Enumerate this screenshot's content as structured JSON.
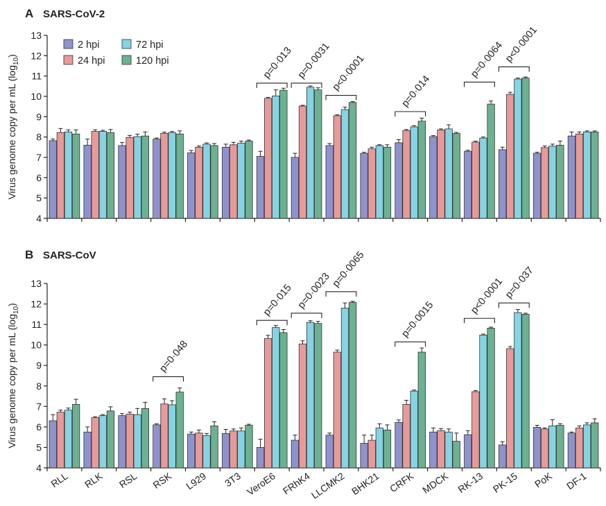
{
  "chart_data": [
    {
      "panel_letter": "A",
      "title": "SARS-CoV-2",
      "type": "bar",
      "ylabel_main": "Virus genome copy per mL (log",
      "ylabel_sub": "10",
      "ylabel_end": ")",
      "ylim": [
        4,
        13
      ],
      "yticks": [
        4,
        5,
        6,
        7,
        8,
        9,
        10,
        11,
        12,
        13
      ],
      "show_xticklabels": false,
      "legend": true,
      "categories": [
        "RLL",
        "RLK",
        "RSL",
        "RSK",
        "L929",
        "3T3",
        "VeroE6",
        "FRhK4",
        "LLCMK2",
        "BHK21",
        "CRFK",
        "MDCK",
        "RK-13",
        "PK-15",
        "PoK",
        "DF-1"
      ],
      "series": [
        {
          "name": "2 hpi",
          "color": "#8e93cd",
          "values": [
            7.82,
            7.6,
            7.58,
            7.9,
            7.22,
            7.5,
            7.05,
            7.0,
            7.58,
            7.2,
            7.72,
            8.02,
            7.3,
            7.38,
            7.2,
            8.05
          ],
          "errors": [
            0.08,
            0.3,
            0.15,
            0.05,
            0.12,
            0.15,
            0.25,
            0.2,
            0.1,
            0.05,
            0.15,
            0.05,
            0.05,
            0.12,
            0.05,
            0.2
          ]
        },
        {
          "name": "24 hpi",
          "color": "#e89a98",
          "values": [
            8.22,
            8.28,
            7.98,
            8.18,
            7.5,
            7.62,
            9.9,
            9.52,
            9.05,
            7.42,
            8.32,
            8.35,
            7.75,
            10.1,
            7.48,
            8.15
          ],
          "errors": [
            0.2,
            0.08,
            0.1,
            0.06,
            0.06,
            0.12,
            0.05,
            0.04,
            0.04,
            0.08,
            0.05,
            0.05,
            0.05,
            0.1,
            0.08,
            0.1
          ]
        },
        {
          "name": "72 hpi",
          "color": "#86d3e3",
          "values": [
            8.25,
            8.28,
            8.02,
            8.22,
            7.65,
            7.7,
            10.02,
            10.45,
            9.35,
            7.58,
            8.5,
            8.4,
            7.95,
            10.85,
            7.55,
            8.25
          ],
          "errors": [
            0.1,
            0.05,
            0.12,
            0.05,
            0.06,
            0.1,
            0.3,
            0.06,
            0.12,
            0.04,
            0.06,
            0.2,
            0.05,
            0.05,
            0.1,
            0.05
          ]
        },
        {
          "name": "120 hpi",
          "color": "#6cb191",
          "values": [
            8.15,
            8.22,
            8.05,
            8.15,
            7.58,
            7.8,
            10.3,
            10.32,
            9.7,
            7.5,
            8.78,
            8.18,
            9.62,
            10.9,
            7.6,
            8.25
          ],
          "errors": [
            0.2,
            0.15,
            0.2,
            0.15,
            0.1,
            0.05,
            0.1,
            0.1,
            0.04,
            0.12,
            0.15,
            0.05,
            0.15,
            0.05,
            0.2,
            0.05
          ]
        }
      ],
      "annotations": [
        {
          "category": "VeroE6",
          "text": "p=0·013",
          "y_bracket": 10.65
        },
        {
          "category": "FRhK4",
          "text": "p=0·0031",
          "y_bracket": 10.65
        },
        {
          "category": "LLCMK2",
          "text": "p<0·0001",
          "y_bracket": 10.05
        },
        {
          "category": "CRFK",
          "text": "p=0·014",
          "y_bracket": 9.25
        },
        {
          "category": "RK-13",
          "text": "p=0·0064",
          "y_bracket": 10.7
        },
        {
          "category": "PK-15",
          "text": "p<0·0001",
          "y_bracket": 11.45
        }
      ]
    },
    {
      "panel_letter": "B",
      "title": "SARS-CoV",
      "type": "bar",
      "ylabel_main": "Virus genome copy per mL (log",
      "ylabel_sub": "10",
      "ylabel_end": ")",
      "ylim": [
        4,
        13
      ],
      "yticks": [
        4,
        5,
        6,
        7,
        8,
        9,
        10,
        11,
        12,
        13
      ],
      "show_xticklabels": true,
      "legend": false,
      "categories": [
        "RLL",
        "RLK",
        "RSL",
        "RSK",
        "L929",
        "3T3",
        "VeroE6",
        "FRhK4",
        "LLCMK2",
        "BHK21",
        "CRFK",
        "MDCK",
        "RK-13",
        "PK-15",
        "PoK",
        "DF-1"
      ],
      "series": [
        {
          "name": "2 hpi",
          "color": "#8e93cd",
          "values": [
            6.3,
            5.75,
            6.55,
            6.1,
            5.65,
            5.68,
            5.0,
            5.35,
            5.6,
            5.2,
            6.22,
            5.75,
            5.62,
            5.12,
            5.98,
            5.7
          ],
          "errors": [
            0.3,
            0.25,
            0.1,
            0.05,
            0.1,
            0.2,
            0.4,
            0.25,
            0.1,
            0.4,
            0.12,
            0.2,
            0.2,
            0.15,
            0.1,
            0.05
          ]
        },
        {
          "name": "24 hpi",
          "color": "#e89a98",
          "values": [
            6.72,
            6.45,
            6.62,
            7.12,
            5.7,
            5.8,
            10.32,
            10.05,
            9.65,
            5.35,
            7.1,
            5.82,
            7.72,
            9.82,
            5.9,
            5.95
          ],
          "errors": [
            0.1,
            0.05,
            0.1,
            0.25,
            0.15,
            0.1,
            0.15,
            0.15,
            0.1,
            0.25,
            0.2,
            0.1,
            0.05,
            0.1,
            0.05,
            0.1
          ]
        },
        {
          "name": "72 hpi",
          "color": "#86d3e3",
          "values": [
            6.82,
            6.55,
            6.6,
            7.08,
            5.58,
            5.8,
            10.85,
            11.1,
            11.8,
            5.95,
            7.75,
            5.75,
            10.48,
            11.58,
            6.05,
            6.1
          ],
          "errors": [
            0.1,
            0.05,
            0.3,
            0.2,
            0.1,
            0.15,
            0.1,
            0.08,
            0.25,
            0.2,
            0.05,
            0.15,
            0.05,
            0.15,
            0.3,
            0.1
          ]
        },
        {
          "name": "120 hpi",
          "color": "#6cb191",
          "values": [
            7.1,
            6.78,
            6.9,
            7.7,
            6.05,
            6.08,
            10.6,
            11.05,
            12.08,
            5.85,
            9.65,
            5.3,
            10.82,
            11.5,
            6.08,
            6.2
          ],
          "errors": [
            0.25,
            0.2,
            0.3,
            0.2,
            0.2,
            0.05,
            0.15,
            0.1,
            0.05,
            0.25,
            0.2,
            0.4,
            0.05,
            0.05,
            0.08,
            0.2
          ]
        }
      ],
      "annotations": [
        {
          "category": "RSK",
          "text": "p=0·048",
          "y_bracket": 8.45
        },
        {
          "category": "VeroE6",
          "text": "p=0·015",
          "y_bracket": 11.2
        },
        {
          "category": "FRhK4",
          "text": "p=0·0023",
          "y_bracket": 11.55
        },
        {
          "category": "LLCMK2",
          "text": "p=0·0065",
          "y_bracket": 12.6
        },
        {
          "category": "CRFK",
          "text": "p=0·0015",
          "y_bracket": 10.15
        },
        {
          "category": "RK-13",
          "text": "p<0·0001",
          "y_bracket": 11.3
        },
        {
          "category": "PK-15",
          "text": "p=0·037",
          "y_bracket": 12.05
        }
      ]
    }
  ]
}
